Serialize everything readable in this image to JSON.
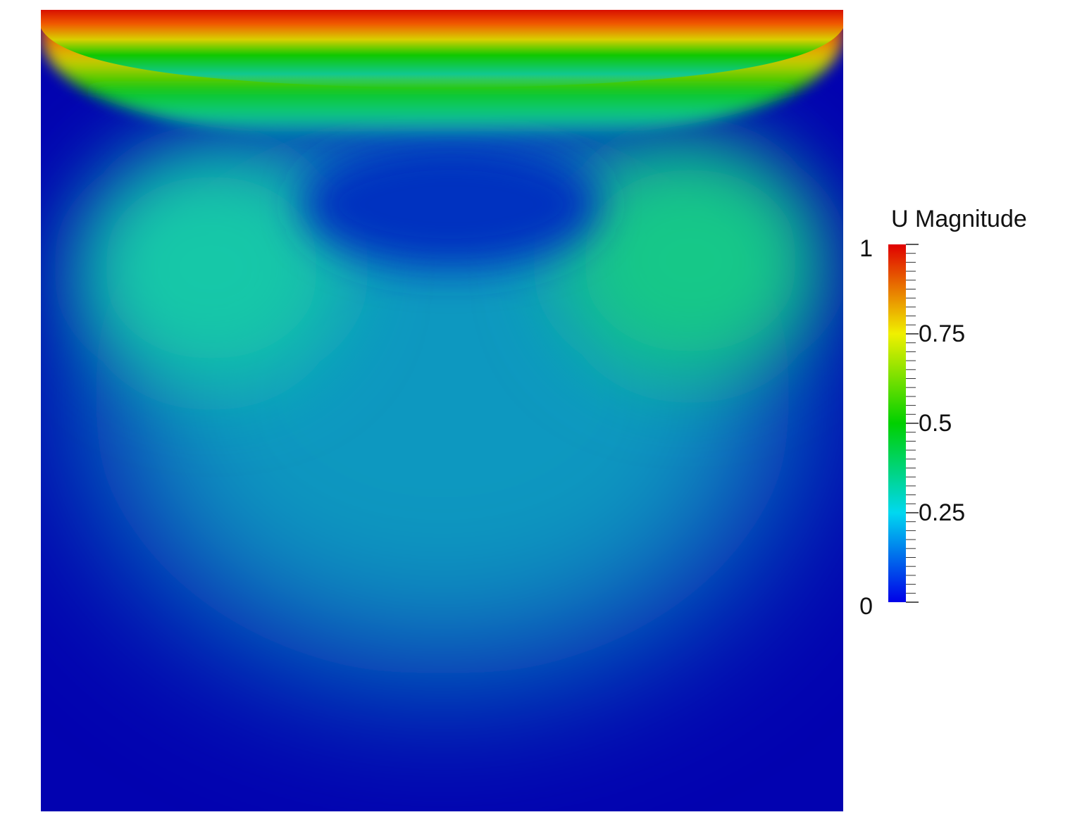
{
  "chart_data": {
    "type": "heatmap",
    "colorbar_title": "U Magnitude",
    "clim": [
      0,
      1
    ],
    "cticks": [
      0,
      0.25,
      0.5,
      0.75,
      1
    ],
    "colormap": [
      "#0000e8",
      "#00d8f0",
      "#00d000",
      "#f0f000",
      "#e00000"
    ]
  }
}
